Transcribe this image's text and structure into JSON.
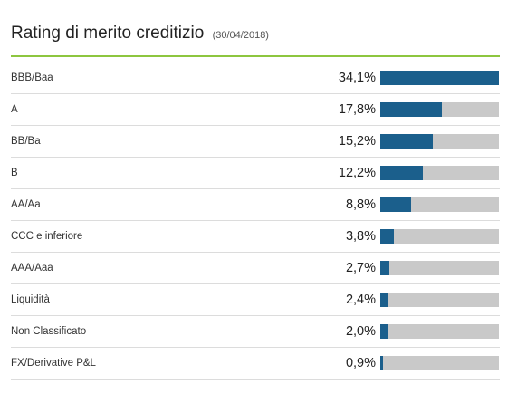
{
  "header": {
    "title": "Rating di merito creditizio",
    "date": "(30/04/2018)"
  },
  "colors": {
    "accent_line": "#8dc63f",
    "bar_fill": "#1b5f8c",
    "bar_track": "#c9c9c9"
  },
  "chart_data": {
    "type": "bar",
    "title": "Rating di merito creditizio",
    "subtitle": "(30/04/2018)",
    "orientation": "horizontal",
    "xlim": [
      0,
      34.1
    ],
    "categories": [
      "BBB/Baa",
      "A",
      "BB/Ba",
      "B",
      "AA/Aa",
      "CCC e inferiore",
      "AAA/Aaa",
      "Liquidità",
      "Non Classificato",
      "FX/Derivative P&L"
    ],
    "values": [
      34.1,
      17.8,
      15.2,
      12.2,
      8.8,
      3.8,
      2.7,
      2.4,
      2.0,
      0.9
    ],
    "value_labels": [
      "34,1%",
      "17,8%",
      "15,2%",
      "12,2%",
      "8,8%",
      "3,8%",
      "2,7%",
      "2,4%",
      "2,0%",
      "0,9%"
    ]
  }
}
